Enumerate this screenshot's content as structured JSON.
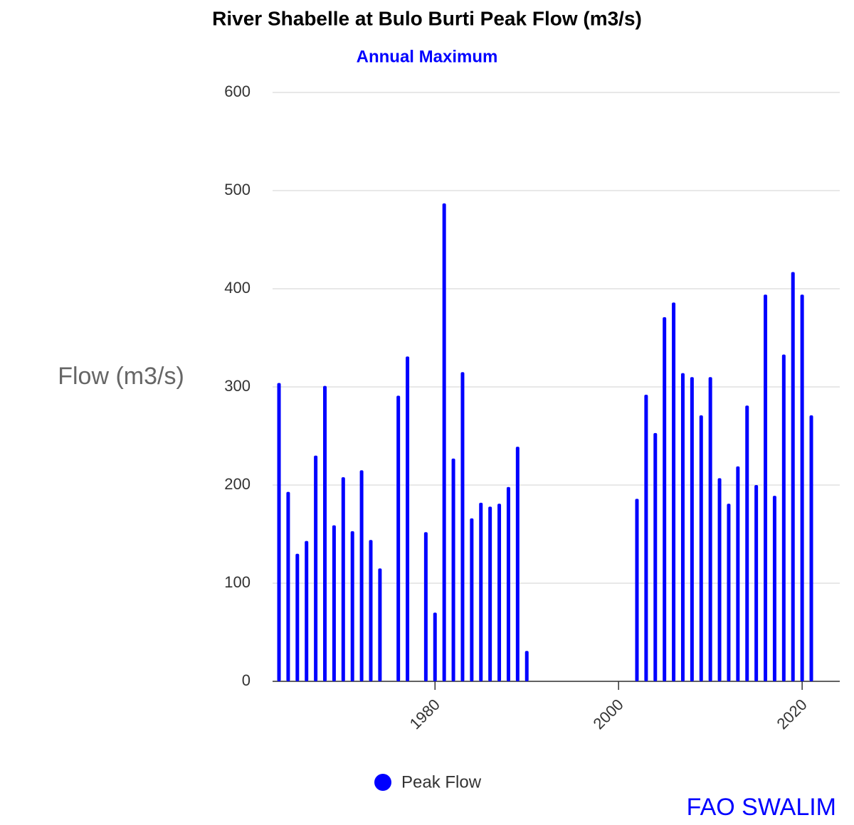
{
  "chart_data": {
    "type": "bar",
    "title": "River Shabelle at Bulo Burti Peak Flow (m3/s)",
    "subtitle": "Annual Maximum",
    "y_label": "Flow (m3/s)",
    "credit": "FAO SWALIM",
    "x": [
      1963,
      1964,
      1965,
      1966,
      1967,
      1968,
      1969,
      1970,
      1971,
      1972,
      1973,
      1974,
      1976,
      1977,
      1979,
      1980,
      1981,
      1982,
      1983,
      1984,
      1985,
      1986,
      1987,
      1988,
      1989,
      1990,
      2002,
      2003,
      2004,
      2005,
      2006,
      2007,
      2008,
      2009,
      2010,
      2011,
      2012,
      2013,
      2014,
      2015,
      2016,
      2017,
      2018,
      2019,
      2020,
      2021
    ],
    "series": [
      {
        "name": "Peak Flow",
        "color": "#0000ff",
        "values": [
          304,
          193,
          130,
          143,
          230,
          301,
          159,
          208,
          153,
          215,
          144,
          115,
          291,
          331,
          152,
          70,
          487,
          227,
          315,
          166,
          182,
          178,
          181,
          198,
          239,
          31,
          186,
          292,
          253,
          371,
          386,
          314,
          310,
          271,
          310,
          207,
          181,
          219,
          281,
          200,
          394,
          189,
          333,
          417,
          394,
          271
        ]
      }
    ],
    "xlim": [
      1962.3,
      2024.1
    ],
    "xticks": [
      1980,
      2000,
      2020
    ],
    "ylim": [
      0,
      600
    ],
    "yticks": [
      0,
      100,
      200,
      300,
      400,
      500,
      600
    ],
    "grid": true,
    "legend": "bottom"
  }
}
